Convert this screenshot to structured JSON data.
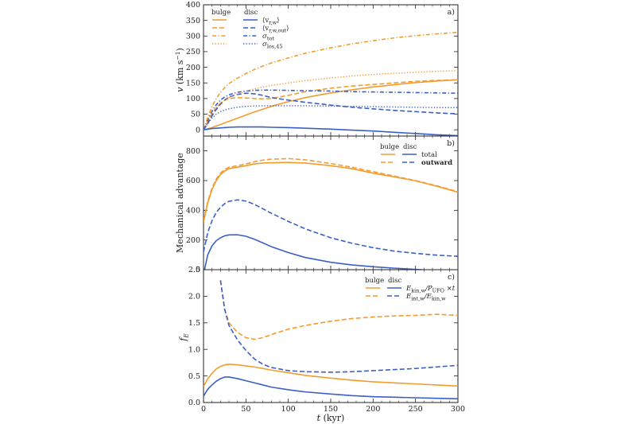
{
  "colors": {
    "bulge": "#f39c2e",
    "disc": "#3a5fc7",
    "axis": "#222222"
  },
  "chart_data": [
    {
      "panel": "a)",
      "type": "line",
      "ylabel": "v",
      "yunit": "(km s",
      "yunit_exp": "−1",
      "yunit_close": ")",
      "xlim": [
        0,
        300
      ],
      "ylim": [
        -20,
        400
      ],
      "yticks": [
        0,
        50,
        100,
        150,
        200,
        250,
        300,
        350,
        400
      ],
      "legend": {
        "header_left": "bulge",
        "header_right": "disc",
        "entries": [
          {
            "style": "solid",
            "label": "⟨v",
            "sub": "r,w",
            "tail": "⟩"
          },
          {
            "style": "dashed",
            "label": "⟨v",
            "sub": "r,w,out",
            "tail": "⟩"
          },
          {
            "style": "dashdot",
            "label": "σ",
            "sub": "tot",
            "tail": ""
          },
          {
            "style": "dotted",
            "label": "σ",
            "sub": "los,45",
            "tail": ""
          }
        ]
      },
      "x": [
        0,
        5,
        10,
        15,
        20,
        25,
        30,
        40,
        50,
        60,
        70,
        80,
        100,
        120,
        150,
        175,
        200,
        225,
        250,
        275,
        300
      ],
      "series": [
        {
          "group": "bulge",
          "style": "solid",
          "values": [
            0,
            3,
            7,
            12,
            17,
            22,
            27,
            37,
            47,
            57,
            66,
            75,
            90,
            103,
            118,
            128,
            137,
            144,
            151,
            156,
            160
          ]
        },
        {
          "group": "disc",
          "style": "solid",
          "values": [
            0,
            2,
            4,
            5,
            6,
            7,
            8,
            9,
            9,
            9,
            9,
            8,
            7,
            5,
            2,
            -1,
            -4,
            -8,
            -12,
            -16,
            -19
          ]
        },
        {
          "group": "bulge",
          "style": "dashed",
          "values": [
            0,
            25,
            50,
            70,
            85,
            95,
            100,
            103,
            102,
            100,
            99,
            100,
            110,
            122,
            133,
            140,
            145,
            150,
            155,
            158,
            160
          ]
        },
        {
          "group": "disc",
          "style": "dashed",
          "values": [
            0,
            20,
            45,
            65,
            82,
            95,
            105,
            113,
            117,
            115,
            110,
            103,
            95,
            88,
            79,
            72,
            67,
            62,
            58,
            54,
            51
          ]
        },
        {
          "group": "bulge",
          "style": "dashdot",
          "values": [
            0,
            40,
            75,
            100,
            120,
            135,
            148,
            165,
            180,
            193,
            204,
            214,
            230,
            245,
            262,
            275,
            285,
            294,
            301,
            307,
            312
          ]
        },
        {
          "group": "disc",
          "style": "dashdot",
          "values": [
            0,
            30,
            60,
            80,
            95,
            105,
            112,
            120,
            124,
            126,
            127,
            127,
            126,
            125,
            124,
            122,
            121,
            120,
            119,
            118,
            117
          ]
        },
        {
          "group": "bulge",
          "style": "dotted",
          "values": [
            0,
            30,
            55,
            72,
            85,
            95,
            103,
            115,
            124,
            131,
            137,
            142,
            150,
            157,
            166,
            172,
            177,
            181,
            184,
            187,
            189
          ]
        },
        {
          "group": "disc",
          "style": "dotted",
          "values": [
            0,
            20,
            38,
            50,
            58,
            63,
            67,
            72,
            75,
            76,
            77,
            77,
            77,
            77,
            76,
            75,
            74,
            73,
            72,
            71,
            71
          ]
        }
      ]
    },
    {
      "panel": "b)",
      "type": "line",
      "ylabel": "Mechanical advantage",
      "xlim": [
        0,
        300
      ],
      "ylim": [
        0,
        900
      ],
      "yticks": [
        0,
        200,
        400,
        600,
        800
      ],
      "legend": {
        "header_left": "bulge",
        "header_right": "disc",
        "entries": [
          {
            "style": "solid",
            "label": "total"
          },
          {
            "style": "dashed",
            "label": "outward"
          }
        ]
      },
      "x": [
        0,
        5,
        10,
        15,
        20,
        25,
        30,
        40,
        50,
        60,
        70,
        80,
        100,
        120,
        150,
        175,
        200,
        225,
        250,
        275,
        300
      ],
      "series": [
        {
          "group": "bulge",
          "style": "solid",
          "values": [
            320,
            450,
            540,
            600,
            640,
            665,
            680,
            690,
            700,
            712,
            718,
            720,
            722,
            718,
            700,
            680,
            650,
            625,
            598,
            562,
            522
          ]
        },
        {
          "group": "bulge",
          "style": "dashed",
          "values": [
            330,
            460,
            550,
            610,
            650,
            675,
            690,
            700,
            712,
            727,
            738,
            744,
            748,
            740,
            715,
            690,
            660,
            630,
            600,
            565,
            525
          ]
        },
        {
          "group": "disc",
          "style": "dashed",
          "values": [
            120,
            250,
            330,
            385,
            420,
            445,
            460,
            470,
            462,
            440,
            410,
            380,
            325,
            275,
            215,
            178,
            148,
            125,
            110,
            98,
            90
          ]
        },
        {
          "group": "disc",
          "style": "solid",
          "values": [
            -30,
            100,
            160,
            195,
            215,
            228,
            234,
            235,
            225,
            205,
            180,
            155,
            115,
            82,
            50,
            32,
            20,
            10,
            2,
            -7,
            -15
          ]
        }
      ]
    },
    {
      "panel": "c)",
      "type": "line",
      "ylabel": "f",
      "ylabel_sub": "E",
      "xlabel": "t",
      "xunit": "(kyr)",
      "xlim": [
        0,
        300
      ],
      "ylim": [
        0,
        2.5
      ],
      "xticks": [
        0,
        50,
        100,
        150,
        200,
        250,
        300
      ],
      "yticks": [
        0.0,
        0.5,
        1.0,
        1.5,
        2.0,
        2.5
      ],
      "yticklabels": [
        "0.0",
        "0.5",
        "1.0",
        "1.5",
        "2.0",
        "2.5"
      ],
      "legend": {
        "header_left": "bulge",
        "header_right": "disc",
        "entries": [
          {
            "style": "solid",
            "label": "E",
            "sub": "kin,w",
            "tail": "/P",
            "sub2": "UFO",
            "tail2": " ×t"
          },
          {
            "style": "dashed",
            "label": "E",
            "sub": "int,w",
            "tail": "/E",
            "sub2": "kin,w",
            "tail2": ""
          }
        ]
      },
      "x": [
        0,
        5,
        10,
        15,
        20,
        25,
        30,
        40,
        50,
        60,
        70,
        80,
        100,
        120,
        150,
        175,
        200,
        225,
        250,
        275,
        300
      ],
      "series": [
        {
          "group": "bulge",
          "style": "solid",
          "values": [
            0.3,
            0.45,
            0.55,
            0.63,
            0.68,
            0.71,
            0.72,
            0.71,
            0.69,
            0.67,
            0.64,
            0.61,
            0.56,
            0.51,
            0.46,
            0.42,
            0.39,
            0.37,
            0.35,
            0.33,
            0.31
          ]
        },
        {
          "group": "disc",
          "style": "solid",
          "values": [
            0.12,
            0.25,
            0.33,
            0.4,
            0.45,
            0.48,
            0.48,
            0.45,
            0.41,
            0.37,
            0.33,
            0.29,
            0.24,
            0.2,
            0.16,
            0.13,
            0.11,
            0.1,
            0.09,
            0.08,
            0.07
          ]
        },
        {
          "group": "bulge",
          "style": "dashed",
          "values": [
            null,
            null,
            null,
            null,
            2.3,
            1.75,
            1.5,
            1.32,
            1.22,
            1.19,
            1.22,
            1.28,
            1.38,
            1.45,
            1.53,
            1.58,
            1.61,
            1.63,
            1.64,
            1.66,
            1.64
          ]
        },
        {
          "group": "disc",
          "style": "dashed",
          "values": [
            null,
            null,
            null,
            null,
            2.3,
            1.75,
            1.45,
            1.18,
            0.98,
            0.82,
            0.72,
            0.66,
            0.6,
            0.58,
            0.57,
            0.58,
            0.6,
            0.62,
            0.64,
            0.67,
            0.7
          ]
        }
      ]
    }
  ]
}
